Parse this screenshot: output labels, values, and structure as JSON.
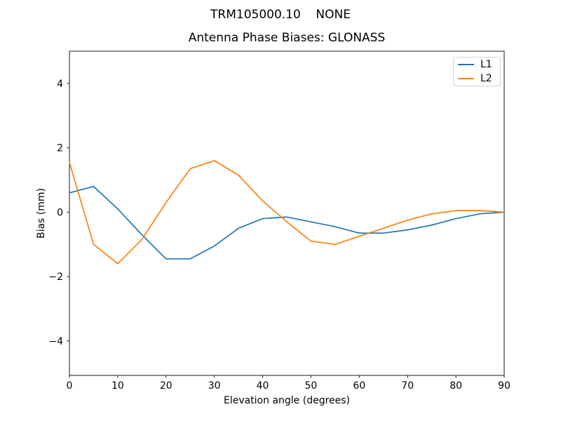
{
  "figure": {
    "suptitle": "TRM105000.10    NONE"
  },
  "chart_data": {
    "type": "line",
    "title": "Antenna Phase Biases: GLONASS",
    "xlabel": "Elevation angle (degrees)",
    "ylabel": "Bias (mm)",
    "xlim": [
      0,
      90
    ],
    "ylim": [
      -5.07,
      5.0
    ],
    "grid": false,
    "legend_position": "upper right",
    "xticks": {
      "values": [
        0,
        10,
        20,
        30,
        40,
        50,
        60,
        70,
        80,
        90
      ],
      "labels": [
        "0",
        "10",
        "20",
        "30",
        "40",
        "50",
        "60",
        "70",
        "80",
        "90"
      ]
    },
    "yticks": {
      "values": [
        -4,
        -2,
        0,
        2,
        4
      ],
      "labels": [
        "−4",
        "−2",
        "0",
        "2",
        "4"
      ]
    },
    "x": [
      0,
      5,
      10,
      15,
      20,
      25,
      30,
      35,
      40,
      45,
      50,
      55,
      60,
      65,
      70,
      75,
      80,
      85,
      90
    ],
    "series": [
      {
        "name": "L1",
        "color": "#1f77b4",
        "values": [
          0.6,
          0.8,
          0.1,
          -0.7,
          -1.45,
          -1.45,
          -1.05,
          -0.5,
          -0.2,
          -0.15,
          -0.3,
          -0.45,
          -0.65,
          -0.65,
          -0.55,
          -0.4,
          -0.2,
          -0.05,
          0.0
        ]
      },
      {
        "name": "L2",
        "color": "#ff7f0e",
        "values": [
          1.55,
          -1.0,
          -1.6,
          -0.85,
          0.3,
          1.35,
          1.6,
          1.15,
          0.35,
          -0.3,
          -0.9,
          -1.0,
          -0.75,
          -0.5,
          -0.25,
          -0.05,
          0.05,
          0.05,
          0.0
        ]
      }
    ]
  }
}
